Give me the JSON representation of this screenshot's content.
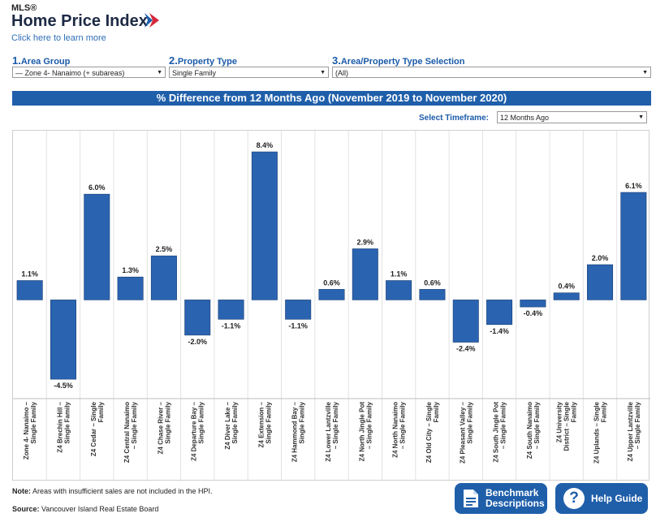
{
  "header": {
    "brand_sup": "MLS®",
    "brand_title": "Home Price Index",
    "learn_link": "Click here to learn more"
  },
  "filters": [
    {
      "num": "1.",
      "label": "Area Group",
      "value": "— Zone 4- Nanaimo (+ subareas)"
    },
    {
      "num": "2.",
      "label": "Property Type",
      "value": "Single Family"
    },
    {
      "num": "3.",
      "label": "Area/Property Type Selection",
      "value": "(All)"
    }
  ],
  "banner_title": "% Difference from 12 Months Ago (November 2019 to November 2020)",
  "timeframe": {
    "label": "Select Timeframe:",
    "value": "12 Months Ago"
  },
  "colors": {
    "bar": "#2a63b0",
    "banner": "#1f5faa",
    "accent": "#1a5aa8"
  },
  "chart_data": {
    "type": "bar",
    "title": "% Difference from 12 Months Ago (November 2019 to November 2020)",
    "categories": [
      [
        "Zone 4- Nanaimo –",
        "Single Family"
      ],
      [
        "Z4 Brechin Hill –",
        "Single Family"
      ],
      [
        "Z4 Cedar – Single",
        "Family"
      ],
      [
        "Z4 Central Nanaimo",
        "– Single Family"
      ],
      [
        "Z4 Chase River –",
        "Single Family"
      ],
      [
        "Z4 Departure Bay –",
        "Single Family"
      ],
      [
        "Z4 Diver Lake –",
        "Single Family"
      ],
      [
        "Z4 Extension –",
        "Single Family"
      ],
      [
        "Z4 Hammond Bay –",
        "Single Family"
      ],
      [
        "Z4 Lower Lantzville",
        "– Single Family"
      ],
      [
        "Z4 North Jingle Pot",
        "– Single Family"
      ],
      [
        "Z4 North Nanaimo",
        "– Single Family"
      ],
      [
        "Z4 Old City – Single",
        "Family"
      ],
      [
        "Z4 Pleasant Valley –",
        "Single Family"
      ],
      [
        "Z4 South Jingle Pot",
        "– Single Family"
      ],
      [
        "Z4 South Nanaimo",
        "– Single Family"
      ],
      [
        "Z4 University",
        "District – Single",
        "Family"
      ],
      [
        "Z4 Uplands – Single",
        "Family"
      ],
      [
        "Z4 Upper Lantzville",
        "– Single Family"
      ]
    ],
    "values": [
      1.1,
      -4.5,
      6.0,
      1.3,
      2.5,
      -2.0,
      -1.1,
      8.4,
      -1.1,
      0.6,
      2.9,
      1.1,
      0.6,
      -2.4,
      -1.4,
      -0.4,
      0.4,
      2.0,
      6.1
    ],
    "labels": [
      "1.1%",
      "-4.5%",
      "6.0%",
      "1.3%",
      "2.5%",
      "-2.0%",
      "-1.1%",
      "8.4%",
      "-1.1%",
      "0.6%",
      "2.9%",
      "1.1%",
      "0.6%",
      "-2.4%",
      "-1.4%",
      "-0.4%",
      "0.4%",
      "2.0%",
      "6.1%"
    ],
    "ylim": [
      -5.6,
      9.6
    ],
    "grid": false
  },
  "footer": {
    "note_bold": "Note:",
    "note_text": " Areas with insufficient sales are not included in the HPI.",
    "source_bold": "Source:",
    "source_text": " Vancouver Island Real Estate Board"
  },
  "buttons": {
    "benchmark_line1": "Benchmark",
    "benchmark_line2": "Descriptions",
    "help": "Help Guide"
  }
}
